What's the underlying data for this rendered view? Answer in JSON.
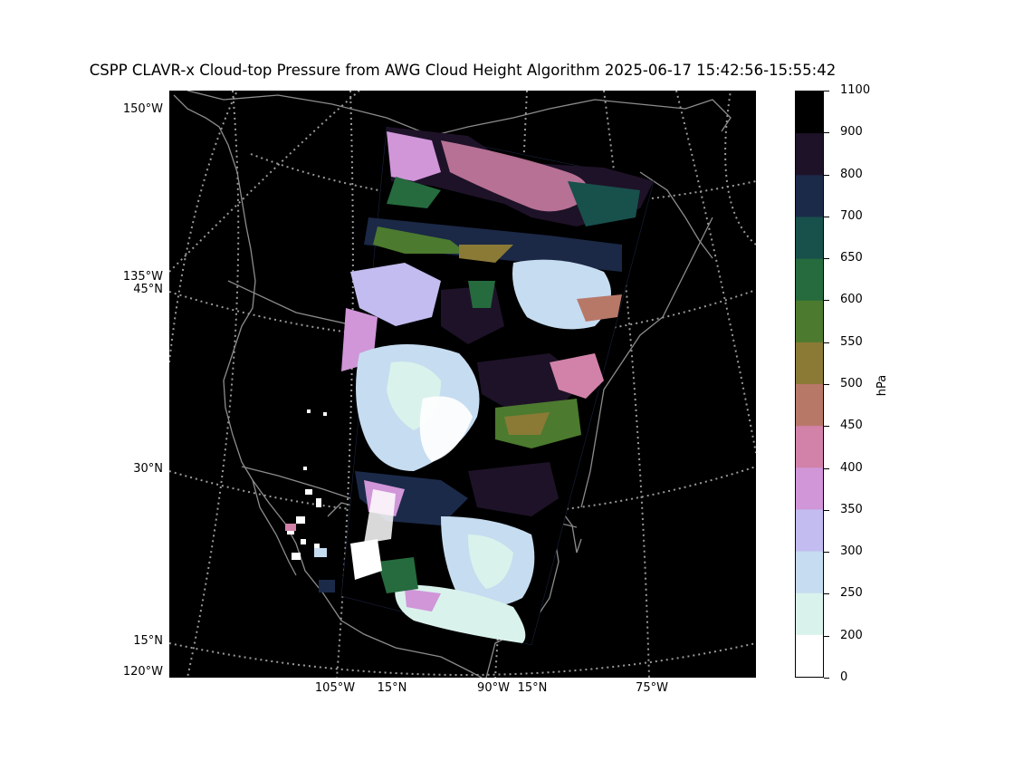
{
  "title": "CSPP CLAVR-x Cloud-top Pressure from AWG Cloud Height Algorithm 2025-06-17 15:42:56-15:55:42",
  "map": {
    "left_labels": [
      "150°W",
      "135°W",
      "45°N",
      "30°N",
      "15°N",
      "120°W"
    ],
    "bottom_labels": [
      "105°W",
      "15°N",
      "90°W",
      "15°N",
      "75°W"
    ],
    "background_color": "#000000",
    "gridline_color": "#9a9a9a",
    "coastline_color": "#8c8c8c"
  },
  "colorbar": {
    "unit": "hPa",
    "ticks": [
      "1100",
      "900",
      "800",
      "700",
      "650",
      "600",
      "550",
      "500",
      "450",
      "400",
      "350",
      "300",
      "250",
      "200",
      "0"
    ],
    "bin_colors": [
      "#000000",
      "#1e1228",
      "#1c2a4a",
      "#18504c",
      "#256b3e",
      "#4c7a2e",
      "#8a7a36",
      "#b87868",
      "#d282a8",
      "#d096d8",
      "#c2bcf0",
      "#c6dcf0",
      "#daf2ec",
      "#ffffff"
    ]
  }
}
